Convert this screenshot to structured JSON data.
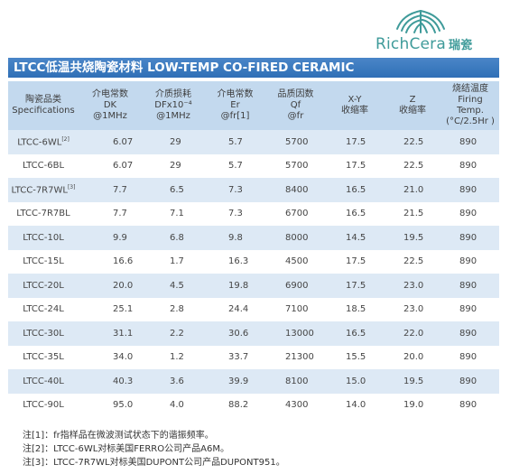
{
  "logo": {
    "brand": "RichCera",
    "brand_cn": "瑞瓷",
    "color": "#3f9b9a"
  },
  "title": "LTCC低温共烧陶瓷材料  LOW-TEMP CO-FIRED CERAMIC",
  "table": {
    "headers": [
      {
        "lines": [
          "陶瓷品类",
          "Specifications"
        ]
      },
      {
        "lines": [
          "介电常数",
          "DK",
          "@1MHz"
        ]
      },
      {
        "lines": [
          "介质损耗",
          "DFx10⁻⁴",
          "@1MHz"
        ]
      },
      {
        "lines": [
          "介电常数",
          "Er",
          "@fr[1]"
        ]
      },
      {
        "lines": [
          "品质因数",
          "Qf",
          "@fr"
        ]
      },
      {
        "lines": [
          "X-Y",
          "收缩率"
        ]
      },
      {
        "lines": [
          "Z",
          "收缩率"
        ]
      },
      {
        "lines": [
          "烧结温度",
          "Firing",
          "Temp.",
          "(°C/2.5Hr )"
        ]
      }
    ],
    "rows": [
      {
        "name": "LTCC-6WL",
        "note": "[2]",
        "dk": "6.07",
        "df": "29",
        "er": "5.7",
        "qf": "5700",
        "xy": "17.5",
        "z": "22.5",
        "temp": "890"
      },
      {
        "name": "LTCC-6BL",
        "note": "",
        "dk": "6.07",
        "df": "29",
        "er": "5.7",
        "qf": "5700",
        "xy": "17.5",
        "z": "22.5",
        "temp": "890"
      },
      {
        "name": "LTCC-7R7WL",
        "note": "[3]",
        "dk": "7.7",
        "df": "6.5",
        "er": "7.3",
        "qf": "8400",
        "xy": "16.5",
        "z": "21.0",
        "temp": "890"
      },
      {
        "name": "LTCC-7R7BL",
        "note": "",
        "dk": "7.7",
        "df": "7.1",
        "er": "7.3",
        "qf": "6700",
        "xy": "16.5",
        "z": "21.5",
        "temp": "890"
      },
      {
        "name": "LTCC-10L",
        "note": "",
        "dk": "9.9",
        "df": "6.8",
        "er": "9.8",
        "qf": "8000",
        "xy": "14.5",
        "z": "19.5",
        "temp": "890"
      },
      {
        "name": "LTCC-15L",
        "note": "",
        "dk": "16.6",
        "df": "1.7",
        "er": "16.3",
        "qf": "4500",
        "xy": "17.5",
        "z": "22.5",
        "temp": "890"
      },
      {
        "name": "LTCC-20L",
        "note": "",
        "dk": "20.0",
        "df": "4.5",
        "er": "19.8",
        "qf": "6900",
        "xy": "17.5",
        "z": "23.0",
        "temp": "890"
      },
      {
        "name": "LTCC-24L",
        "note": "",
        "dk": "25.1",
        "df": "2.8",
        "er": "24.4",
        "qf": "7100",
        "xy": "18.5",
        "z": "23.0",
        "temp": "890"
      },
      {
        "name": "LTCC-30L",
        "note": "",
        "dk": "31.1",
        "df": "2.2",
        "er": "30.6",
        "qf": "13000",
        "xy": "16.5",
        "z": "22.0",
        "temp": "890"
      },
      {
        "name": "LTCC-35L",
        "note": "",
        "dk": "34.0",
        "df": "1.2",
        "er": "33.7",
        "qf": "21300",
        "xy": "15.5",
        "z": "20.0",
        "temp": "890"
      },
      {
        "name": "LTCC-40L",
        "note": "",
        "dk": "40.3",
        "df": "3.6",
        "er": "39.9",
        "qf": "8100",
        "xy": "15.0",
        "z": "19.5",
        "temp": "890"
      },
      {
        "name": "LTCC-90L",
        "note": "",
        "dk": "95.0",
        "df": "4.0",
        "er": "88.2",
        "qf": "4300",
        "xy": "14.0",
        "z": "19.0",
        "temp": "890"
      }
    ]
  },
  "notes": [
    "注[1]：fr指样品在微波测试状态下的谐振频率。",
    "注[2]：LTCC-6WL对标美国FERRO公司产品A6M。",
    "注[3]：LTCC-7R7WL对标美国DUPONT公司产品DUPONT951。"
  ]
}
